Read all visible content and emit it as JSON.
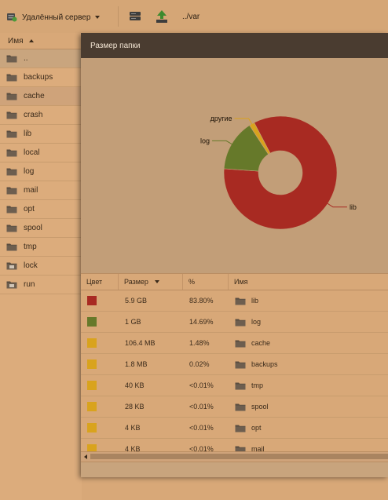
{
  "toolbar": {
    "server_label": "Удалённый сервер",
    "path": "../var"
  },
  "filelist": {
    "header": "Имя",
    "items": [
      {
        "name": ".."
      },
      {
        "name": "backups"
      },
      {
        "name": "cache"
      },
      {
        "name": "crash"
      },
      {
        "name": "lib"
      },
      {
        "name": "local"
      },
      {
        "name": "log"
      },
      {
        "name": "mail"
      },
      {
        "name": "opt"
      },
      {
        "name": "spool"
      },
      {
        "name": "tmp"
      },
      {
        "name": "lock"
      },
      {
        "name": "run"
      }
    ]
  },
  "dialog": {
    "title": "Размер папки"
  },
  "chart_data": {
    "type": "pie",
    "title": "",
    "categories": [
      "lib",
      "log",
      "другие"
    ],
    "values": [
      83.8,
      14.69,
      1.51
    ],
    "colors": [
      "#a82a22",
      "#66792a",
      "#d9a31d"
    ]
  },
  "grid": {
    "headers": {
      "color": "Цвет",
      "size": "Размер",
      "pct": "%",
      "name": "Имя"
    },
    "rows": [
      {
        "color": "#a82a22",
        "size": "5.9 GB",
        "pct": "83.80%",
        "name": "lib"
      },
      {
        "color": "#66792a",
        "size": "1 GB",
        "pct": "14.69%",
        "name": "log"
      },
      {
        "color": "#d9a31d",
        "size": "106.4 MB",
        "pct": "1.48%",
        "name": "cache"
      },
      {
        "color": "#d9a31d",
        "size": "1.8 MB",
        "pct": "0.02%",
        "name": "backups"
      },
      {
        "color": "#d9a31d",
        "size": "40 KB",
        "pct": "<0.01%",
        "name": "tmp"
      },
      {
        "color": "#d9a31d",
        "size": "28 KB",
        "pct": "<0.01%",
        "name": "spool"
      },
      {
        "color": "#d9a31d",
        "size": "4 KB",
        "pct": "<0.01%",
        "name": "opt"
      },
      {
        "color": "#d9a31d",
        "size": "4 KB",
        "pct": "<0.01%",
        "name": "mail"
      }
    ]
  }
}
